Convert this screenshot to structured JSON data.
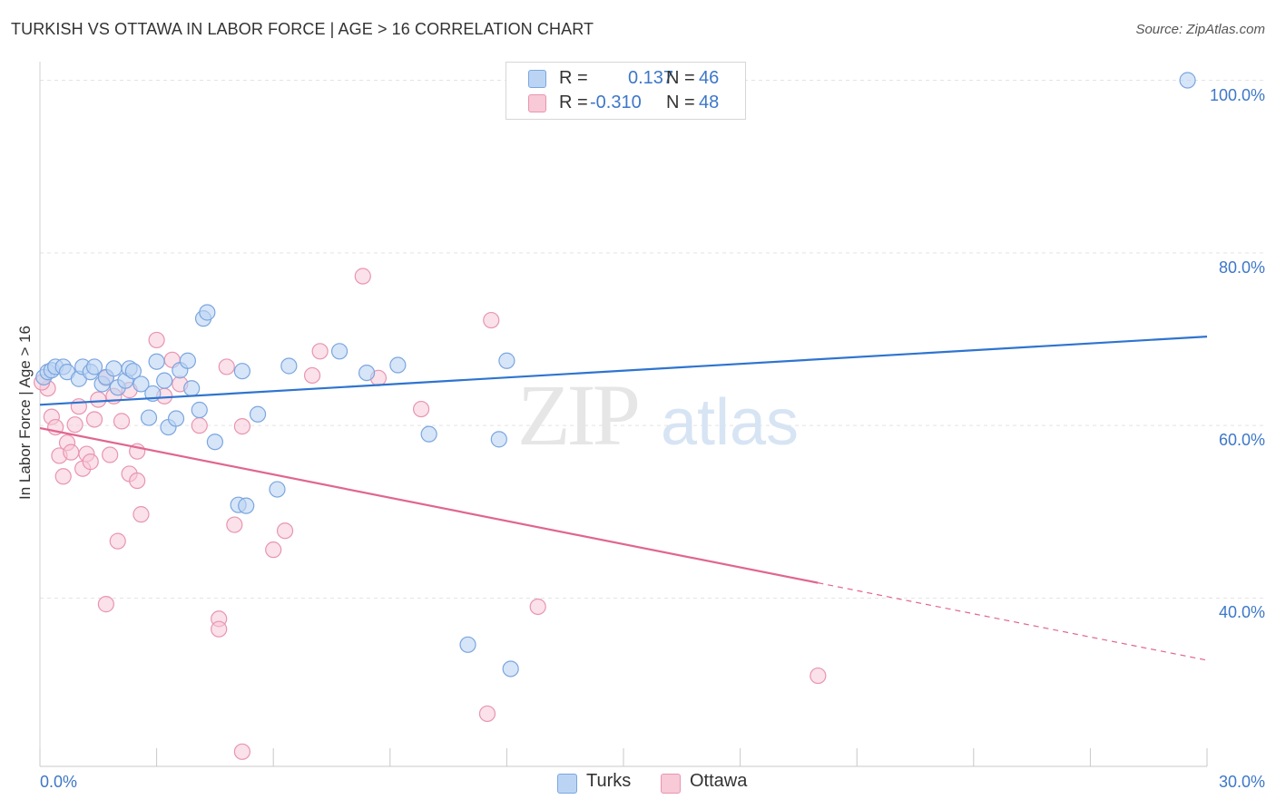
{
  "title": "TURKISH VS OTTAWA IN LABOR FORCE | AGE > 16 CORRELATION CHART",
  "source": "Source: ZipAtlas.com",
  "watermark": {
    "zip": "ZIP",
    "atlas": "atlas"
  },
  "legend": {
    "turks": {
      "r_label": "R =",
      "r_value": "0.137",
      "n_label": "N =",
      "n_value": "46"
    },
    "ottawa": {
      "r_label": "R =",
      "r_value": "-0.310",
      "n_label": "N =",
      "n_value": "48"
    }
  },
  "bottom_legend": {
    "turks": "Turks",
    "ottawa": "Ottawa"
  },
  "colors": {
    "turks_fill": "#bcd4f4",
    "turks_stroke": "#7aa6e0",
    "turks_line": "#2f74cf",
    "ottawa_fill": "#f8c9d7",
    "ottawa_stroke": "#e895b0",
    "ottawa_line": "#e0668f",
    "grid": "#e4e4e4",
    "axis_text": "#3d77c8"
  },
  "chart_data": {
    "type": "scatter",
    "title": "TURKISH VS OTTAWA IN LABOR FORCE | AGE > 16 CORRELATION CHART",
    "xlabel": "",
    "ylabel": "In Labor Force | Age > 16",
    "xlim": [
      0,
      30
    ],
    "ylim": [
      20.5,
      101
    ],
    "x_tick_labels": [
      "0.0%",
      "30.0%"
    ],
    "y_ticks": [
      40,
      60,
      80,
      100
    ],
    "y_tick_labels": [
      "40.0%",
      "60.0%",
      "80.0%",
      "100.0%"
    ],
    "grid": true,
    "legend_position": "top-center",
    "series": [
      {
        "name": "Turks",
        "r": 0.137,
        "n": 46,
        "trend": {
          "x": [
            0,
            30
          ],
          "y": [
            62.4,
            70.3
          ],
          "dashed_from": null
        },
        "points": [
          [
            0.1,
            65.6
          ],
          [
            0.2,
            66.2
          ],
          [
            0.3,
            66.4
          ],
          [
            0.4,
            66.8
          ],
          [
            0.6,
            66.8
          ],
          [
            0.7,
            66.2
          ],
          [
            1.0,
            65.4
          ],
          [
            1.1,
            66.8
          ],
          [
            1.3,
            66.2
          ],
          [
            1.4,
            66.8
          ],
          [
            1.6,
            64.8
          ],
          [
            1.7,
            65.6
          ],
          [
            1.9,
            66.6
          ],
          [
            2.0,
            64.4
          ],
          [
            2.2,
            65.2
          ],
          [
            2.3,
            66.6
          ],
          [
            2.4,
            66.3
          ],
          [
            2.6,
            64.8
          ],
          [
            2.8,
            60.9
          ],
          [
            2.9,
            63.7
          ],
          [
            3.0,
            67.4
          ],
          [
            3.2,
            65.2
          ],
          [
            3.3,
            59.8
          ],
          [
            3.5,
            60.8
          ],
          [
            3.6,
            66.4
          ],
          [
            3.8,
            67.5
          ],
          [
            3.9,
            64.3
          ],
          [
            4.1,
            61.8
          ],
          [
            4.2,
            72.4
          ],
          [
            4.3,
            73.1
          ],
          [
            4.5,
            58.1
          ],
          [
            5.1,
            50.8
          ],
          [
            5.2,
            66.3
          ],
          [
            5.3,
            50.7
          ],
          [
            5.6,
            61.3
          ],
          [
            6.1,
            52.6
          ],
          [
            6.4,
            66.9
          ],
          [
            7.7,
            68.6
          ],
          [
            8.4,
            66.1
          ],
          [
            9.2,
            67.0
          ],
          [
            10.0,
            59.0
          ],
          [
            11.0,
            34.6
          ],
          [
            11.8,
            58.4
          ],
          [
            12.0,
            67.5
          ],
          [
            12.1,
            31.8
          ],
          [
            29.5,
            100.0
          ]
        ]
      },
      {
        "name": "Ottawa",
        "r": -0.31,
        "n": 48,
        "trend": {
          "x": [
            0,
            30
          ],
          "y": [
            59.7,
            32.8
          ],
          "dashed_from": 20.0
        },
        "points": [
          [
            0.2,
            64.3
          ],
          [
            0.3,
            61.0
          ],
          [
            0.4,
            59.8
          ],
          [
            0.5,
            56.5
          ],
          [
            0.6,
            54.1
          ],
          [
            0.7,
            58.0
          ],
          [
            0.8,
            56.9
          ],
          [
            0.9,
            60.1
          ],
          [
            1.0,
            62.2
          ],
          [
            1.1,
            55.0
          ],
          [
            1.2,
            56.7
          ],
          [
            1.3,
            55.8
          ],
          [
            1.4,
            60.7
          ],
          [
            1.5,
            63.0
          ],
          [
            1.7,
            65.5
          ],
          [
            1.7,
            39.3
          ],
          [
            1.8,
            56.6
          ],
          [
            1.9,
            63.4
          ],
          [
            2.0,
            46.6
          ],
          [
            2.1,
            60.5
          ],
          [
            2.3,
            64.1
          ],
          [
            2.3,
            54.4
          ],
          [
            2.5,
            57.0
          ],
          [
            2.5,
            53.6
          ],
          [
            2.6,
            49.7
          ],
          [
            3.0,
            69.9
          ],
          [
            3.2,
            63.4
          ],
          [
            3.4,
            67.6
          ],
          [
            3.6,
            64.8
          ],
          [
            4.1,
            60.0
          ],
          [
            4.6,
            37.6
          ],
          [
            4.6,
            36.4
          ],
          [
            4.8,
            66.8
          ],
          [
            5.0,
            48.5
          ],
          [
            5.2,
            59.9
          ],
          [
            5.2,
            22.2
          ],
          [
            6.0,
            45.6
          ],
          [
            6.3,
            47.8
          ],
          [
            7.0,
            65.8
          ],
          [
            7.2,
            68.6
          ],
          [
            8.3,
            77.3
          ],
          [
            8.7,
            65.5
          ],
          [
            9.8,
            61.9
          ],
          [
            11.5,
            26.6
          ],
          [
            11.6,
            72.2
          ],
          [
            12.8,
            39.0
          ],
          [
            20.0,
            31.0
          ],
          [
            0.05,
            65.0
          ]
        ]
      }
    ]
  }
}
